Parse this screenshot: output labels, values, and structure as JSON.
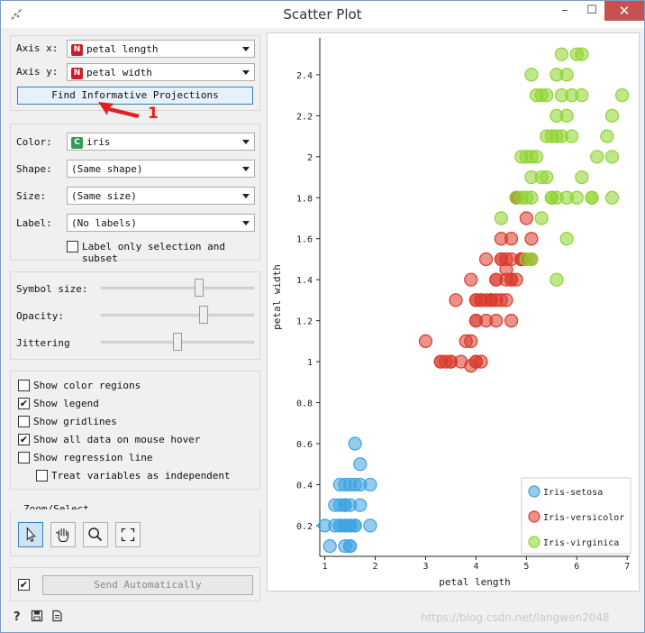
{
  "window": {
    "title": "Scatter Plot",
    "min": "–",
    "max": "☐",
    "close": "✕"
  },
  "axes": {
    "x_label": "Axis x:",
    "x_value": "petal length",
    "x_badge": "N",
    "y_label": "Axis y:",
    "y_value": "petal width",
    "y_badge": "N",
    "find_button": "Find Informative Projections"
  },
  "annotation": {
    "number": "1",
    "color": "#e02020"
  },
  "attributes": {
    "color_label": "Color:",
    "color_value": "iris",
    "color_badge": "C",
    "shape_label": "Shape:",
    "shape_value": "(Same shape)",
    "size_label": "Size:",
    "size_value": "(Same size)",
    "label_label": "Label:",
    "label_value": "(No labels)",
    "label_only_selection": "Label only selection and subset"
  },
  "sliders": {
    "symbol_size_label": "Symbol size:",
    "symbol_size_level": 0.65,
    "opacity_label": "Opacity:",
    "opacity_level": 0.68,
    "jittering_label": "Jittering",
    "jittering_level": 0.5
  },
  "options": [
    {
      "label": "Show color regions",
      "checked": false,
      "indent": false
    },
    {
      "label": "Show legend",
      "checked": true,
      "indent": false
    },
    {
      "label": "Show gridlines",
      "checked": false,
      "indent": false
    },
    {
      "label": "Show all data on mouse hover",
      "checked": true,
      "indent": false
    },
    {
      "label": "Show regression line",
      "checked": false,
      "indent": false
    },
    {
      "label": "Treat variables as independent",
      "checked": false,
      "indent": true
    }
  ],
  "zoom": {
    "title": "Zoom/Select",
    "tools": [
      "pointer-icon",
      "hand-icon",
      "magnifier-icon",
      "fit-icon"
    ]
  },
  "send": {
    "checked": true,
    "label": "Send Automatically"
  },
  "watermark": "https://blog.csdn.net/langwen2048",
  "colors": {
    "setosa": "#3ea2e0",
    "versicolor": "#d93a2b",
    "virginica": "#8ed32f"
  },
  "chart_data": {
    "type": "scatter",
    "xlabel": "petal length",
    "ylabel": "petal width",
    "xlim": [
      0.9,
      7.05
    ],
    "ylim": [
      0.05,
      2.58
    ],
    "xticks": [
      "1",
      "2",
      "3",
      "4",
      "5",
      "6",
      "7"
    ],
    "yticks": [
      "0.2",
      "0.4",
      "0.6",
      "0.8",
      "1",
      "1.2",
      "1.4",
      "1.6",
      "1.8",
      "2",
      "2.2",
      "2.4"
    ],
    "legend_position": "bottom-right",
    "series": [
      {
        "name": "Iris-setosa",
        "points": [
          [
            1.4,
            0.2
          ],
          [
            1.3,
            0.2
          ],
          [
            1.5,
            0.2
          ],
          [
            1.7,
            0.4
          ],
          [
            1.4,
            0.3
          ],
          [
            1.5,
            0.1
          ],
          [
            1.6,
            0.2
          ],
          [
            1.1,
            0.1
          ],
          [
            1.2,
            0.2
          ],
          [
            1.3,
            0.4
          ],
          [
            1.4,
            0.4
          ],
          [
            1.7,
            0.3
          ],
          [
            1.5,
            0.3
          ],
          [
            1.0,
            0.2
          ],
          [
            1.9,
            0.2
          ],
          [
            1.6,
            0.4
          ],
          [
            1.5,
            0.4
          ],
          [
            1.9,
            0.4
          ],
          [
            1.6,
            0.6
          ],
          [
            1.3,
            0.3
          ],
          [
            1.4,
            0.1
          ],
          [
            1.7,
            0.5
          ],
          [
            1.2,
            0.3
          ],
          [
            1.5,
            0.2
          ],
          [
            1.3,
            0.2
          ],
          [
            1.6,
            0.2
          ],
          [
            1.4,
            0.2
          ],
          [
            1.5,
            0.1
          ],
          [
            1.4,
            0.3
          ]
        ]
      },
      {
        "name": "Iris-versicolor",
        "points": [
          [
            4.7,
            1.4
          ],
          [
            4.5,
            1.5
          ],
          [
            4.9,
            1.5
          ],
          [
            4.0,
            1.3
          ],
          [
            4.6,
            1.5
          ],
          [
            4.5,
            1.3
          ],
          [
            4.7,
            1.6
          ],
          [
            3.3,
            1.0
          ],
          [
            4.6,
            1.3
          ],
          [
            3.9,
            1.4
          ],
          [
            3.5,
            1.0
          ],
          [
            4.2,
            1.5
          ],
          [
            4.0,
            1.0
          ],
          [
            4.7,
            1.4
          ],
          [
            3.6,
            1.3
          ],
          [
            4.4,
            1.4
          ],
          [
            4.1,
            1.0
          ],
          [
            4.5,
            1.5
          ],
          [
            3.9,
            1.1
          ],
          [
            4.8,
            1.8
          ],
          [
            4.0,
            1.3
          ],
          [
            4.9,
            1.5
          ],
          [
            4.7,
            1.2
          ],
          [
            4.3,
            1.3
          ],
          [
            4.4,
            1.4
          ],
          [
            4.8,
            1.4
          ],
          [
            5.0,
            1.7
          ],
          [
            3.8,
            1.1
          ],
          [
            3.7,
            1.0
          ],
          [
            5.1,
            1.6
          ],
          [
            4.5,
            1.6
          ],
          [
            4.7,
            1.5
          ],
          [
            4.4,
            1.3
          ],
          [
            4.1,
            1.3
          ],
          [
            4.0,
            1.2
          ],
          [
            4.4,
            1.2
          ],
          [
            4.6,
            1.4
          ],
          [
            4.0,
            1.2
          ],
          [
            3.3,
            1.0
          ],
          [
            4.2,
            1.3
          ],
          [
            4.2,
            1.2
          ],
          [
            4.3,
            1.3
          ],
          [
            3.0,
            1.1
          ],
          [
            4.1,
            1.3
          ],
          [
            3.4,
            1.0
          ],
          [
            3.9,
            0.98
          ],
          [
            3.5,
            1.0
          ],
          [
            4.0,
            1.0
          ],
          [
            4.6,
            1.45
          ],
          [
            5.1,
            1.5
          ],
          [
            4.8,
            1.8
          ],
          [
            4.9,
            1.5
          ],
          [
            5.0,
            1.5
          ],
          [
            4.3,
            1.3
          ]
        ]
      },
      {
        "name": "Iris-virginica",
        "points": [
          [
            6.0,
            2.5
          ],
          [
            5.1,
            1.9
          ],
          [
            5.9,
            2.1
          ],
          [
            5.6,
            1.8
          ],
          [
            5.8,
            2.2
          ],
          [
            6.6,
            2.1
          ],
          [
            4.5,
            1.7
          ],
          [
            6.3,
            1.8
          ],
          [
            5.8,
            1.8
          ],
          [
            6.1,
            2.5
          ],
          [
            5.1,
            2.0
          ],
          [
            5.3,
            1.9
          ],
          [
            5.5,
            2.1
          ],
          [
            5.0,
            2.0
          ],
          [
            5.1,
            2.4
          ],
          [
            5.3,
            2.3
          ],
          [
            5.5,
            1.8
          ],
          [
            6.7,
            2.2
          ],
          [
            6.9,
            2.3
          ],
          [
            5.0,
            1.5
          ],
          [
            5.7,
            2.3
          ],
          [
            4.9,
            2.0
          ],
          [
            6.7,
            2.0
          ],
          [
            4.9,
            1.8
          ],
          [
            5.7,
            2.1
          ],
          [
            6.0,
            1.8
          ],
          [
            4.8,
            1.8
          ],
          [
            5.6,
            2.1
          ],
          [
            5.8,
            1.6
          ],
          [
            6.1,
            1.9
          ],
          [
            6.4,
            2.0
          ],
          [
            5.6,
            2.2
          ],
          [
            5.1,
            1.5
          ],
          [
            5.6,
            1.4
          ],
          [
            6.1,
            2.3
          ],
          [
            5.6,
            2.4
          ],
          [
            5.5,
            1.8
          ],
          [
            5.4,
            2.1
          ],
          [
            5.2,
            2.3
          ],
          [
            5.9,
            2.3
          ],
          [
            5.7,
            2.5
          ],
          [
            5.2,
            2.0
          ],
          [
            5.4,
            2.3
          ],
          [
            5.1,
            1.8
          ],
          [
            6.3,
            1.8
          ],
          [
            5.0,
            1.8
          ],
          [
            5.3,
            1.7
          ],
          [
            5.4,
            1.9
          ],
          [
            5.8,
            2.4
          ],
          [
            6.7,
            1.8
          ]
        ]
      }
    ]
  }
}
